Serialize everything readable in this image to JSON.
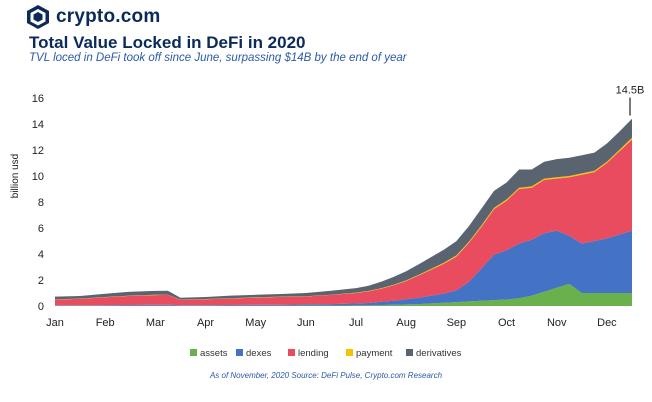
{
  "brand": {
    "name": "crypto.com",
    "logo_icon": "crypto-com-lion-shield-icon"
  },
  "header": {
    "title": "Total Value Locked in DeFi in 2020",
    "subtitle": "TVL loced in DeFi took off since June, surpassing $14B by the end of year"
  },
  "footnote": "As of  November, 2020 Source: DeFi Pulse, Crypto.com Research",
  "chart_data": {
    "type": "area",
    "stacked": true,
    "title": "Total Value Locked in DeFi in 2020",
    "ylabel": "billion usd",
    "xlabel": "",
    "ylim": [
      0,
      16
    ],
    "yticks": [
      0,
      2,
      4,
      6,
      8,
      10,
      12,
      14,
      16
    ],
    "grid": false,
    "legend_position": "bottom-center",
    "x": [
      0,
      0.5,
      1,
      1.5,
      2,
      2.25,
      2.5,
      3,
      3.5,
      4,
      4.5,
      5,
      5.5,
      6,
      6.25,
      6.5,
      6.75,
      7,
      7.25,
      7.5,
      7.75,
      8,
      8.25,
      8.5,
      8.75,
      9,
      9.25,
      9.5,
      9.75,
      10,
      10.25,
      10.5,
      10.75,
      11,
      11.25,
      11.5
    ],
    "month_labels": [
      "Jan",
      "Feb",
      "Mar",
      "Apr",
      "May",
      "Jun",
      "Jul",
      "Aug",
      "Sep",
      "Oct",
      "Nov",
      "Dec"
    ],
    "series": [
      {
        "name": "assets",
        "color": "#6ab04c",
        "values": [
          0.02,
          0.02,
          0.02,
          0.02,
          0.02,
          0.02,
          0.02,
          0.02,
          0.02,
          0.02,
          0.02,
          0.03,
          0.03,
          0.05,
          0.05,
          0.08,
          0.1,
          0.12,
          0.15,
          0.2,
          0.25,
          0.3,
          0.35,
          0.4,
          0.45,
          0.5,
          0.6,
          0.8,
          1.1,
          1.4,
          1.7,
          1.0,
          1.0,
          1.0,
          1.0,
          1.0
        ]
      },
      {
        "name": "dexes",
        "color": "#4472c4",
        "values": [
          0.03,
          0.03,
          0.05,
          0.06,
          0.07,
          0.08,
          0.05,
          0.05,
          0.06,
          0.07,
          0.08,
          0.1,
          0.12,
          0.15,
          0.18,
          0.25,
          0.3,
          0.4,
          0.5,
          0.6,
          0.7,
          0.9,
          1.5,
          2.5,
          3.5,
          3.8,
          4.2,
          4.3,
          4.5,
          4.4,
          3.7,
          3.8,
          4.0,
          4.2,
          4.5,
          4.8
        ]
      },
      {
        "name": "lending",
        "color": "#e94b5f",
        "values": [
          0.45,
          0.5,
          0.6,
          0.7,
          0.75,
          0.75,
          0.4,
          0.45,
          0.5,
          0.55,
          0.6,
          0.6,
          0.7,
          0.8,
          0.9,
          1.0,
          1.2,
          1.4,
          1.7,
          2.0,
          2.3,
          2.6,
          3.0,
          3.2,
          3.5,
          3.8,
          4.2,
          4.0,
          4.1,
          4.0,
          4.5,
          5.3,
          5.3,
          5.8,
          6.4,
          7.0
        ]
      },
      {
        "name": "payment",
        "color": "#f5c400",
        "values": [
          0.02,
          0.02,
          0.02,
          0.02,
          0.02,
          0.02,
          0.02,
          0.02,
          0.02,
          0.02,
          0.02,
          0.02,
          0.02,
          0.03,
          0.03,
          0.03,
          0.04,
          0.05,
          0.06,
          0.07,
          0.08,
          0.09,
          0.1,
          0.1,
          0.1,
          0.1,
          0.1,
          0.1,
          0.1,
          0.1,
          0.1,
          0.1,
          0.1,
          0.1,
          0.12,
          0.15
        ]
      },
      {
        "name": "derivatives",
        "color": "#5a6470",
        "values": [
          0.2,
          0.2,
          0.25,
          0.3,
          0.3,
          0.3,
          0.15,
          0.15,
          0.2,
          0.2,
          0.2,
          0.25,
          0.3,
          0.35,
          0.4,
          0.5,
          0.6,
          0.7,
          0.8,
          0.9,
          1.0,
          1.1,
          1.2,
          1.3,
          1.3,
          1.3,
          1.4,
          1.3,
          1.3,
          1.4,
          1.4,
          1.4,
          1.4,
          1.4,
          1.4,
          1.45
        ]
      }
    ],
    "annotation": {
      "label": "14.5B",
      "x": 11.5,
      "y": 14.5
    }
  }
}
